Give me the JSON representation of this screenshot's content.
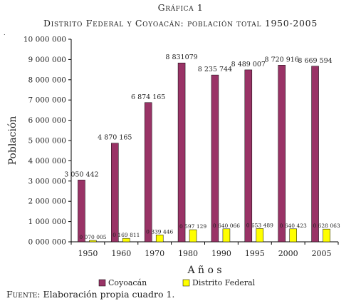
{
  "figure": {
    "label": "Gráfica 1",
    "title": "Distrito Federal y Coyoacán: población total 1950-2005",
    "source_label": "Fuente:",
    "source_text": "Elaboración propia cuadro 1."
  },
  "chart_data": {
    "type": "bar",
    "title": "Distrito Federal y Coyoacán: población total 1950-2005",
    "xlabel": "A ñ o s",
    "ylabel": "Población",
    "ylim": [
      0,
      10000000
    ],
    "yticks": [
      0,
      1000000,
      2000000,
      3000000,
      4000000,
      5000000,
      6000000,
      7000000,
      8000000,
      9000000,
      10000000
    ],
    "ytick_labels": [
      "0 000 000",
      "1 000 000",
      "2 000 000",
      "3 000 000",
      "4 000 000",
      "5 000 000",
      "6 000 000",
      "7 000 000",
      "8 000 000",
      "9 000 000",
      "10 000 000"
    ],
    "categories": [
      "1950",
      "1960",
      "1970",
      "1980",
      "1990",
      "1995",
      "2000",
      "2005"
    ],
    "grid": false,
    "legend_position": "bottom",
    "series": [
      {
        "name": "Coyoacán",
        "color": "#993366",
        "values": [
          3050442,
          4870165,
          6874165,
          8831079,
          8235744,
          8489007,
          8720916,
          8669594
        ],
        "labels": [
          "3 050 442",
          "4 870 165",
          "6 874 165",
          "8 831079",
          "8 235 744",
          "8 489 007",
          "8 720 916",
          "8 669 594"
        ]
      },
      {
        "name": "Distrito Federal",
        "color": "#ffff00",
        "values": [
          70005,
          169811,
          339446,
          597129,
          640066,
          653489,
          640423,
          628063
        ],
        "labels": [
          "0 070 005",
          "0 169 811",
          "0 339 446",
          "0 597 129",
          "0 640 066",
          "0 653 489",
          "0 640 423",
          "0 628 063"
        ]
      }
    ]
  }
}
